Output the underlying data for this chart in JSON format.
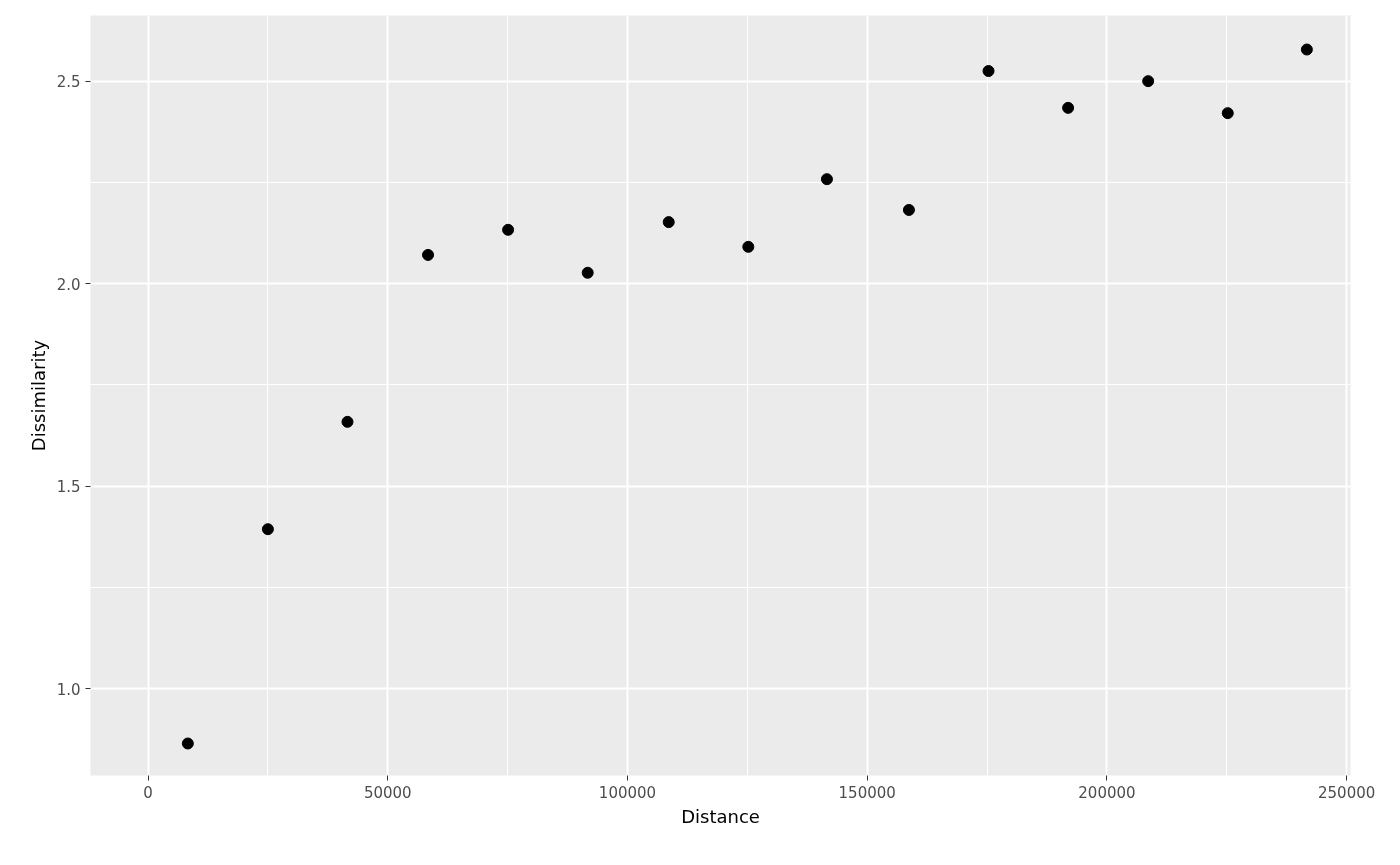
{
  "chart_data": {
    "type": "scatter",
    "xlabel": "Distance",
    "ylabel": "Dissimilarity",
    "x": [
      8300,
      25000,
      41600,
      58400,
      75100,
      91700,
      108600,
      125200,
      141600,
      158700,
      175300,
      191900,
      208600,
      225200,
      241700
    ],
    "series": [
      {
        "color": "#000000",
        "values": [
          0.865,
          1.394,
          1.659,
          2.071,
          2.133,
          2.027,
          2.152,
          2.091,
          2.258,
          2.182,
          2.525,
          2.434,
          2.5,
          2.421,
          2.578
        ]
      }
    ],
    "xlim": [
      -12000,
      250800
    ],
    "ylim": [
      0.786,
      2.662
    ],
    "xticks": [
      0,
      50000,
      100000,
      150000,
      200000,
      250000
    ],
    "yticks": [
      {
        "value": 1,
        "label": "1.0"
      },
      {
        "value": 1.5,
        "label": "1.5"
      },
      {
        "value": 2,
        "label": "2.0"
      },
      {
        "value": 2.5,
        "label": "2.5"
      }
    ],
    "grid": true,
    "marker": "circle"
  }
}
